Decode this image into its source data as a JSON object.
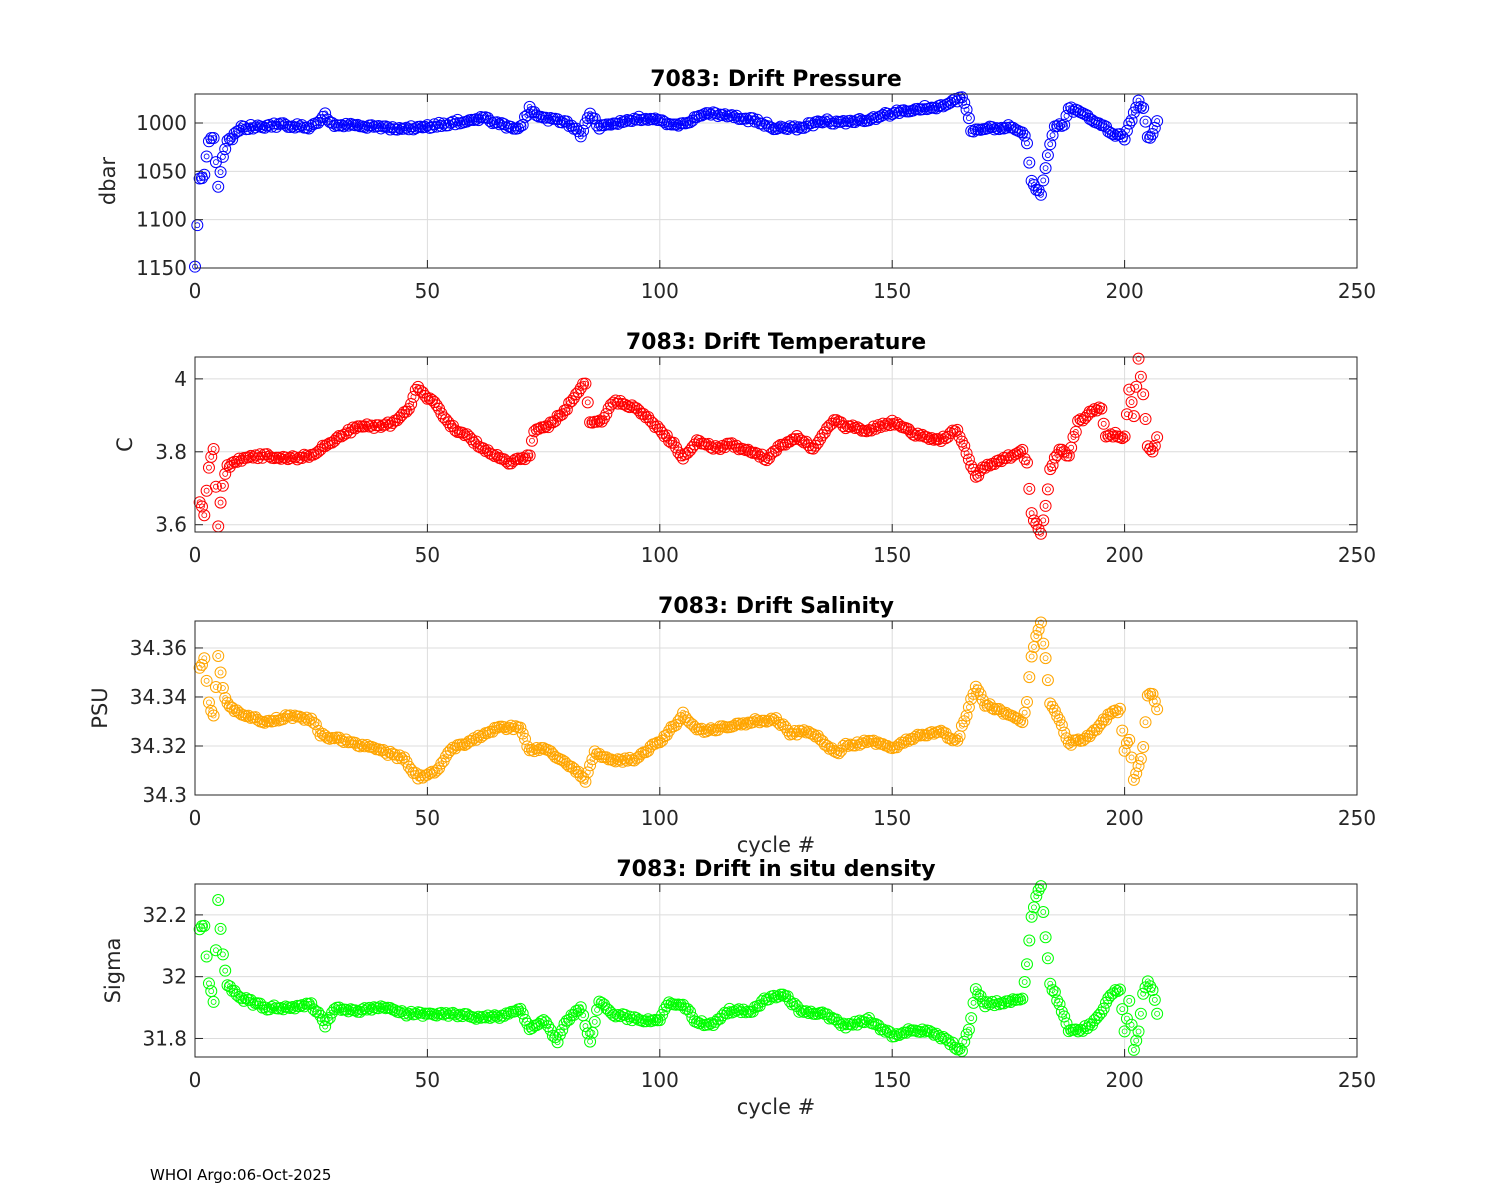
{
  "footer": "WHOI Argo:06-Oct-2025",
  "chart_data": [
    {
      "type": "scatter",
      "title": "7083: Drift Pressure",
      "xlabel": "",
      "ylabel": "dbar",
      "color": "#0000ff",
      "xlim": [
        0,
        250
      ],
      "ylim": [
        1150,
        970
      ],
      "y_reversed": true,
      "xticks": [
        0,
        50,
        100,
        150,
        200,
        250
      ],
      "yticks": [
        1000,
        1050,
        1100,
        1150
      ],
      "ytick_labels": [
        "1000",
        "1050",
        "1100",
        "1150"
      ],
      "grid": true,
      "marker": "circle",
      "anchors": [
        [
          0,
          1150
        ],
        [
          1,
          1058
        ],
        [
          2,
          1052
        ],
        [
          3,
          1020
        ],
        [
          4,
          1015
        ],
        [
          5,
          1065
        ],
        [
          6,
          1035
        ],
        [
          7,
          1018
        ],
        [
          8,
          1015
        ],
        [
          10,
          1005
        ],
        [
          15,
          1003
        ],
        [
          20,
          1002
        ],
        [
          25,
          1005
        ],
        [
          28,
          992
        ],
        [
          30,
          1003
        ],
        [
          35,
          1002
        ],
        [
          40,
          1005
        ],
        [
          45,
          1006
        ],
        [
          50,
          1004
        ],
        [
          55,
          1000
        ],
        [
          62,
          994
        ],
        [
          66,
          1002
        ],
        [
          70,
          1005
        ],
        [
          72,
          985
        ],
        [
          75,
          995
        ],
        [
          80,
          1000
        ],
        [
          83,
          1012
        ],
        [
          85,
          990
        ],
        [
          87,
          1005
        ],
        [
          90,
          1000
        ],
        [
          95,
          995
        ],
        [
          100,
          998
        ],
        [
          105,
          1002
        ],
        [
          108,
          993
        ],
        [
          110,
          990
        ],
        [
          115,
          993
        ],
        [
          120,
          997
        ],
        [
          125,
          1005
        ],
        [
          130,
          1005
        ],
        [
          135,
          998
        ],
        [
          140,
          1000
        ],
        [
          145,
          996
        ],
        [
          150,
          990
        ],
        [
          155,
          985
        ],
        [
          160,
          983
        ],
        [
          163,
          978
        ],
        [
          165,
          975
        ],
        [
          166,
          985
        ],
        [
          167,
          1008
        ],
        [
          170,
          1005
        ],
        [
          175,
          1004
        ],
        [
          178,
          1008
        ],
        [
          179,
          1022
        ],
        [
          180,
          1058
        ],
        [
          181,
          1068
        ],
        [
          182,
          1073
        ],
        [
          183,
          1045
        ],
        [
          184,
          1020
        ],
        [
          185,
          1005
        ],
        [
          187,
          1000
        ],
        [
          188,
          985
        ],
        [
          190,
          988
        ],
        [
          192,
          992
        ],
        [
          194,
          1000
        ],
        [
          196,
          1005
        ],
        [
          198,
          1012
        ],
        [
          200,
          1015
        ],
        [
          202,
          990
        ],
        [
          203,
          978
        ],
        [
          204,
          985
        ],
        [
          205,
          1015
        ],
        [
          206,
          1012
        ],
        [
          207,
          998
        ]
      ]
    },
    {
      "type": "scatter",
      "title": "7083: Drift Temperature",
      "xlabel": "",
      "ylabel": "C",
      "color": "#ff0000",
      "xlim": [
        0,
        250
      ],
      "ylim": [
        3.58,
        4.06
      ],
      "xticks": [
        0,
        50,
        100,
        150,
        200,
        250
      ],
      "yticks": [
        3.6,
        3.8,
        4.0
      ],
      "ytick_labels": [
        "3.6",
        "3.8",
        "4"
      ],
      "grid": true,
      "marker": "circle",
      "anchors": [
        [
          1,
          3.66
        ],
        [
          2,
          3.63
        ],
        [
          3,
          3.76
        ],
        [
          4,
          3.81
        ],
        [
          5,
          3.6
        ],
        [
          6,
          3.71
        ],
        [
          7,
          3.76
        ],
        [
          10,
          3.78
        ],
        [
          15,
          3.79
        ],
        [
          20,
          3.78
        ],
        [
          25,
          3.79
        ],
        [
          28,
          3.82
        ],
        [
          30,
          3.83
        ],
        [
          35,
          3.87
        ],
        [
          40,
          3.87
        ],
        [
          43,
          3.88
        ],
        [
          46,
          3.92
        ],
        [
          48,
          3.98
        ],
        [
          50,
          3.95
        ],
        [
          52,
          3.93
        ],
        [
          55,
          3.87
        ],
        [
          58,
          3.85
        ],
        [
          62,
          3.81
        ],
        [
          65,
          3.79
        ],
        [
          68,
          3.77
        ],
        [
          72,
          3.79
        ],
        [
          73,
          3.86
        ],
        [
          76,
          3.87
        ],
        [
          80,
          3.92
        ],
        [
          84,
          3.99
        ],
        [
          85,
          3.88
        ],
        [
          88,
          3.89
        ],
        [
          90,
          3.94
        ],
        [
          95,
          3.92
        ],
        [
          100,
          3.86
        ],
        [
          103,
          3.82
        ],
        [
          105,
          3.78
        ],
        [
          108,
          3.83
        ],
        [
          112,
          3.81
        ],
        [
          115,
          3.82
        ],
        [
          120,
          3.8
        ],
        [
          123,
          3.78
        ],
        [
          126,
          3.82
        ],
        [
          130,
          3.84
        ],
        [
          133,
          3.81
        ],
        [
          136,
          3.86
        ],
        [
          138,
          3.89
        ],
        [
          140,
          3.87
        ],
        [
          145,
          3.86
        ],
        [
          150,
          3.88
        ],
        [
          155,
          3.85
        ],
        [
          160,
          3.83
        ],
        [
          164,
          3.86
        ],
        [
          166,
          3.8
        ],
        [
          168,
          3.73
        ],
        [
          170,
          3.76
        ],
        [
          174,
          3.78
        ],
        [
          178,
          3.8
        ],
        [
          179,
          3.77
        ],
        [
          180,
          3.63
        ],
        [
          181,
          3.6
        ],
        [
          182,
          3.58
        ],
        [
          183,
          3.65
        ],
        [
          184,
          3.75
        ],
        [
          186,
          3.81
        ],
        [
          188,
          3.79
        ],
        [
          190,
          3.88
        ],
        [
          193,
          3.91
        ],
        [
          195,
          3.92
        ],
        [
          196,
          3.84
        ],
        [
          198,
          3.85
        ],
        [
          200,
          3.84
        ],
        [
          201,
          3.97
        ],
        [
          202,
          3.9
        ],
        [
          203,
          4.05
        ],
        [
          204,
          3.96
        ],
        [
          205,
          3.81
        ],
        [
          206,
          3.8
        ],
        [
          207,
          3.84
        ]
      ]
    },
    {
      "type": "scatter",
      "title": "7083: Drift Salinity",
      "xlabel": "cycle #",
      "ylabel": "PSU",
      "color": "#ffa500",
      "xlim": [
        0,
        250
      ],
      "ylim": [
        34.3,
        34.371
      ],
      "xticks": [
        0,
        50,
        100,
        150,
        200,
        250
      ],
      "yticks": [
        34.3,
        34.32,
        34.34,
        34.36
      ],
      "ytick_labels": [
        "34.3",
        "34.32",
        "34.34",
        "34.36"
      ],
      "grid": true,
      "marker": "circle",
      "anchors": [
        [
          1,
          34.352
        ],
        [
          2,
          34.355
        ],
        [
          3,
          34.338
        ],
        [
          4,
          34.332
        ],
        [
          5,
          34.357
        ],
        [
          6,
          34.343
        ],
        [
          7,
          34.337
        ],
        [
          10,
          34.333
        ],
        [
          15,
          34.33
        ],
        [
          20,
          34.332
        ],
        [
          25,
          34.331
        ],
        [
          27,
          34.325
        ],
        [
          30,
          34.323
        ],
        [
          35,
          34.321
        ],
        [
          40,
          34.318
        ],
        [
          45,
          34.315
        ],
        [
          48,
          34.307
        ],
        [
          50,
          34.308
        ],
        [
          52,
          34.31
        ],
        [
          55,
          34.318
        ],
        [
          60,
          34.323
        ],
        [
          65,
          34.327
        ],
        [
          70,
          34.328
        ],
        [
          72,
          34.318
        ],
        [
          75,
          34.319
        ],
        [
          80,
          34.313
        ],
        [
          84,
          34.306
        ],
        [
          86,
          34.317
        ],
        [
          88,
          34.316
        ],
        [
          90,
          34.314
        ],
        [
          95,
          34.315
        ],
        [
          100,
          34.322
        ],
        [
          103,
          34.328
        ],
        [
          105,
          34.333
        ],
        [
          108,
          34.326
        ],
        [
          115,
          34.328
        ],
        [
          120,
          34.33
        ],
        [
          125,
          34.331
        ],
        [
          128,
          34.325
        ],
        [
          132,
          34.326
        ],
        [
          135,
          34.322
        ],
        [
          138,
          34.317
        ],
        [
          140,
          34.32
        ],
        [
          145,
          34.322
        ],
        [
          150,
          34.319
        ],
        [
          155,
          34.324
        ],
        [
          160,
          34.326
        ],
        [
          164,
          34.322
        ],
        [
          166,
          34.333
        ],
        [
          168,
          34.345
        ],
        [
          170,
          34.337
        ],
        [
          175,
          34.333
        ],
        [
          178,
          34.33
        ],
        [
          179,
          34.338
        ],
        [
          180,
          34.357
        ],
        [
          181,
          34.365
        ],
        [
          182,
          34.37
        ],
        [
          183,
          34.355
        ],
        [
          184,
          34.338
        ],
        [
          186,
          34.33
        ],
        [
          188,
          34.321
        ],
        [
          190,
          34.322
        ],
        [
          193,
          34.325
        ],
        [
          195,
          34.33
        ],
        [
          197,
          34.333
        ],
        [
          199,
          34.335
        ],
        [
          200,
          34.318
        ],
        [
          201,
          34.323
        ],
        [
          202,
          34.307
        ],
        [
          203,
          34.311
        ],
        [
          204,
          34.32
        ],
        [
          205,
          34.34
        ],
        [
          206,
          34.342
        ],
        [
          207,
          34.335
        ]
      ]
    },
    {
      "type": "scatter",
      "title": "7083: Drift in situ density",
      "xlabel": "cycle #",
      "ylabel": "Sigma",
      "color": "#00ff00",
      "xlim": [
        0,
        250
      ],
      "ylim": [
        31.74,
        32.3
      ],
      "xticks": [
        0,
        50,
        100,
        150,
        200,
        250
      ],
      "yticks": [
        31.8,
        32.0,
        32.2
      ],
      "ytick_labels": [
        "31.8",
        "32",
        "32.2"
      ],
      "grid": true,
      "marker": "circle",
      "anchors": [
        [
          1,
          32.16
        ],
        [
          2,
          32.16
        ],
        [
          3,
          31.98
        ],
        [
          4,
          31.92
        ],
        [
          5,
          32.25
        ],
        [
          6,
          32.07
        ],
        [
          7,
          31.97
        ],
        [
          10,
          31.93
        ],
        [
          15,
          31.9
        ],
        [
          20,
          31.9
        ],
        [
          25,
          31.91
        ],
        [
          27,
          31.87
        ],
        [
          28,
          31.84
        ],
        [
          30,
          31.9
        ],
        [
          35,
          31.89
        ],
        [
          40,
          31.9
        ],
        [
          45,
          31.88
        ],
        [
          50,
          31.88
        ],
        [
          55,
          31.88
        ],
        [
          60,
          31.87
        ],
        [
          65,
          31.87
        ],
        [
          70,
          31.9
        ],
        [
          72,
          31.83
        ],
        [
          75,
          31.86
        ],
        [
          78,
          31.79
        ],
        [
          80,
          31.86
        ],
        [
          83,
          31.9
        ],
        [
          85,
          31.79
        ],
        [
          87,
          31.92
        ],
        [
          90,
          31.88
        ],
        [
          95,
          31.86
        ],
        [
          100,
          31.86
        ],
        [
          102,
          31.92
        ],
        [
          105,
          31.91
        ],
        [
          108,
          31.85
        ],
        [
          112,
          31.85
        ],
        [
          115,
          31.89
        ],
        [
          120,
          31.89
        ],
        [
          123,
          31.93
        ],
        [
          127,
          31.94
        ],
        [
          130,
          31.89
        ],
        [
          135,
          31.88
        ],
        [
          140,
          31.84
        ],
        [
          145,
          31.86
        ],
        [
          150,
          31.81
        ],
        [
          155,
          31.83
        ],
        [
          160,
          31.81
        ],
        [
          163,
          31.78
        ],
        [
          165,
          31.76
        ],
        [
          167,
          31.86
        ],
        [
          168,
          31.96
        ],
        [
          170,
          31.91
        ],
        [
          175,
          31.92
        ],
        [
          178,
          31.93
        ],
        [
          179,
          32.04
        ],
        [
          180,
          32.2
        ],
        [
          181,
          32.26
        ],
        [
          182,
          32.29
        ],
        [
          183,
          32.13
        ],
        [
          184,
          31.98
        ],
        [
          186,
          31.91
        ],
        [
          188,
          31.83
        ],
        [
          190,
          31.82
        ],
        [
          193,
          31.85
        ],
        [
          195,
          31.88
        ],
        [
          197,
          31.94
        ],
        [
          199,
          31.96
        ],
        [
          200,
          31.82
        ],
        [
          201,
          31.92
        ],
        [
          202,
          31.76
        ],
        [
          203,
          31.82
        ],
        [
          204,
          31.95
        ],
        [
          205,
          31.98
        ],
        [
          206,
          31.96
        ],
        [
          207,
          31.88
        ]
      ]
    }
  ]
}
